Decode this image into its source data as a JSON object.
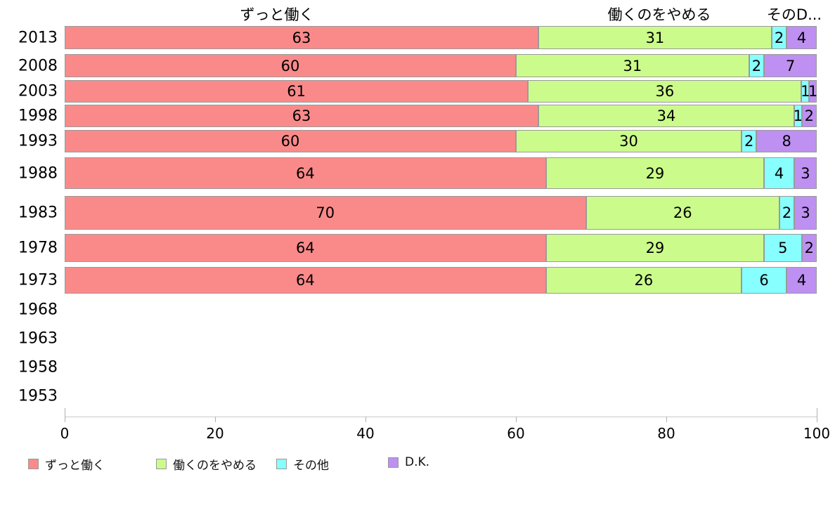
{
  "chart_data": {
    "type": "bar",
    "orientation": "horizontal",
    "stacked": true,
    "title": "",
    "xlabel": "",
    "ylabel": "",
    "xlim": [
      0,
      100
    ],
    "x_ticks": [
      0,
      20,
      40,
      60,
      80,
      100
    ],
    "grid": false,
    "legend_position": "bottom",
    "categories": [
      "2013",
      "2008",
      "2003",
      "1998",
      "1993",
      "1988",
      "1983",
      "1978",
      "1973",
      "1968",
      "1963",
      "1958",
      "1953"
    ],
    "series": [
      {
        "name": "ずっと働く",
        "color": "#FA8A8A",
        "values": [
          63,
          60,
          61,
          63,
          60,
          64,
          70,
          64,
          64,
          null,
          null,
          null,
          null
        ]
      },
      {
        "name": "働くのをやめる",
        "color": "#CBFB8B",
        "values": [
          31,
          31,
          36,
          34,
          30,
          29,
          26,
          29,
          26,
          null,
          null,
          null,
          null
        ]
      },
      {
        "name": "その他",
        "color": "#87FFFF",
        "values": [
          2,
          2,
          1,
          1,
          2,
          4,
          2,
          5,
          6,
          null,
          null,
          null,
          null
        ]
      },
      {
        "name": "D.K.",
        "color": "#BD90F1",
        "values": [
          4,
          7,
          1,
          2,
          8,
          3,
          3,
          2,
          4,
          null,
          null,
          null,
          null
        ]
      }
    ],
    "top_labels": [
      "ずっと働く",
      "働くのをやめる",
      "そのD..."
    ],
    "legend": [
      "ずっと働く",
      "働くのをやめる",
      "その他",
      "D.K."
    ]
  },
  "colors": {
    "segment_border": "#9a9a9a",
    "axis_line": "#c9c9c9",
    "tick": "#b0b0b0",
    "text": "#000000",
    "background": "#ffffff"
  }
}
